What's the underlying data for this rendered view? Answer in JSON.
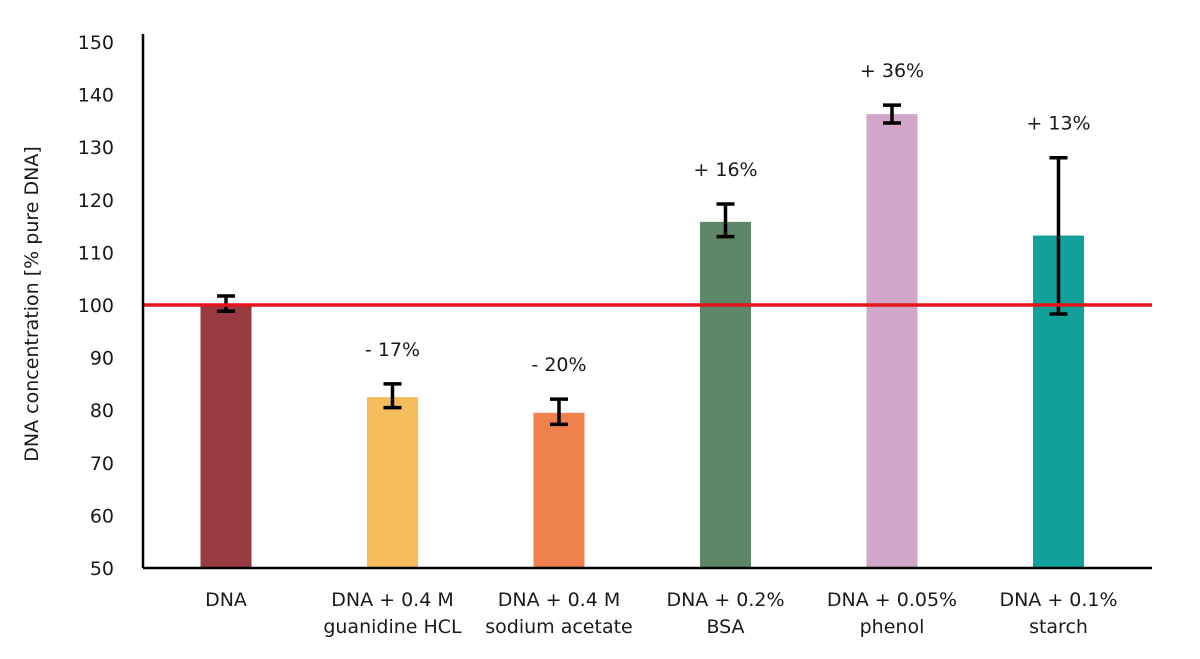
{
  "chart_data": {
    "type": "bar",
    "title": "",
    "xlabel": "",
    "ylabel": "DNA concentration [% pure DNA]",
    "ylim": [
      50,
      150
    ],
    "yticks": [
      50,
      60,
      70,
      80,
      90,
      100,
      110,
      120,
      130,
      140,
      150
    ],
    "grid": false,
    "legend": "none",
    "reference_line": {
      "y": 100,
      "color": "#e3141b"
    },
    "categories": [
      {
        "line1": "DNA",
        "line2": ""
      },
      {
        "line1": "DNA + 0.4 M",
        "line2": "guanidine HCL"
      },
      {
        "line1": "DNA + 0.4 M",
        "line2": "sodium acetate"
      },
      {
        "line1": "DNA + 0.2%",
        "line2": "BSA"
      },
      {
        "line1": "DNA + 0.05%",
        "line2": "phenol"
      },
      {
        "line1": "DNA + 0.1%",
        "line2": "starch"
      }
    ],
    "values": [
      100,
      82.5,
      79.5,
      115.8,
      136.3,
      113.2
    ],
    "error_low": [
      98.8,
      80.5,
      77.3,
      113.0,
      134.6,
      98.3
    ],
    "error_high": [
      101.7,
      85.0,
      82.1,
      119.2,
      138.0,
      128.0
    ],
    "colors": [
      "#983b40",
      "#f6bd5d",
      "#ee814c",
      "#5d8768",
      "#d2a6c9",
      "#12a19a"
    ],
    "annotations": [
      "",
      "- 17%",
      "- 20%",
      "+ 16%",
      "+ 36%",
      "+ 13%"
    ]
  }
}
